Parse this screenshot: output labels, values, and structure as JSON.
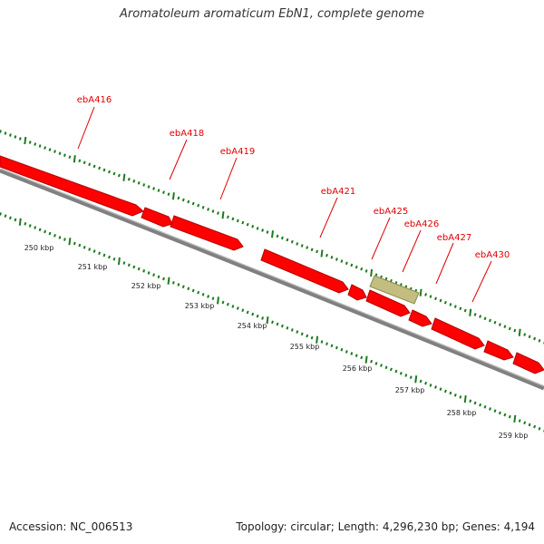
{
  "title": "Aromatoleum aromaticum EbN1, complete genome",
  "footer": {
    "accession": "Accession: NC_006513",
    "summary": "Topology: circular; Length: 4,296,230 bp; Genes: 4,194"
  },
  "colors": {
    "gene_fill": "#ff0000",
    "gene_edge": "#b30000",
    "other_feature": "#c3be7f",
    "backbone": "#808080",
    "ticks": "#1e7a1e",
    "label": "#e00000"
  },
  "scale_labels": [
    "250 kbp",
    "251 kbp",
    "252 kbp",
    "253 kbp",
    "254 kbp",
    "255 kbp",
    "256 kbp",
    "257 kbp",
    "258 kbp",
    "259 kbp"
  ],
  "gene_labels": [
    "ebA416",
    "ebA418",
    "ebA419",
    "ebA421",
    "ebA425",
    "ebA426",
    "ebA427",
    "ebA430"
  ]
}
